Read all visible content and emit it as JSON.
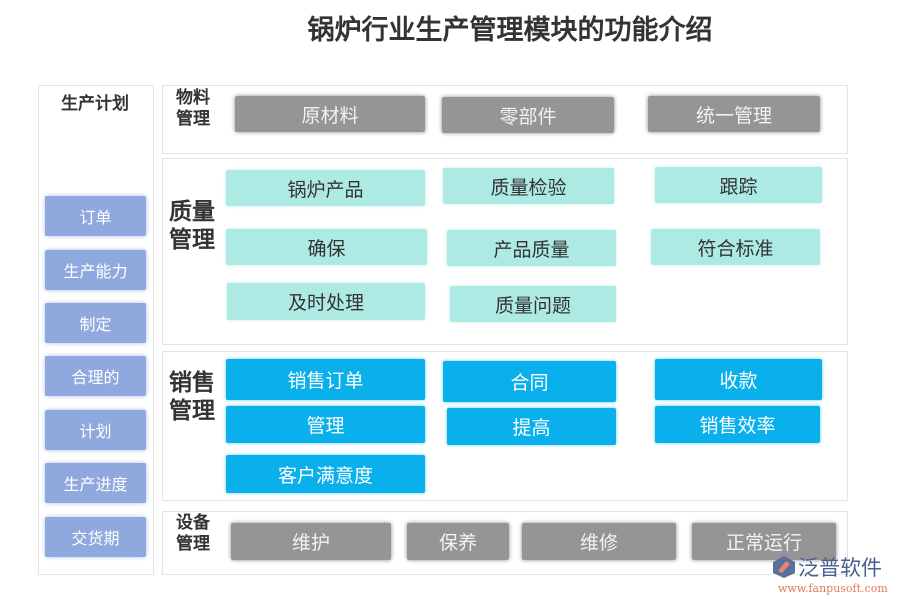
{
  "title": "锅炉行业生产管理模块的功能介绍",
  "sidebar": {
    "title": "生产计划",
    "items": [
      "订单",
      "生产能力",
      "制定",
      "合理的",
      "计划",
      "生产进度",
      "交货期"
    ]
  },
  "sections": [
    {
      "label": "物料管理",
      "items": [
        "原材料",
        "零部件",
        "统一管理"
      ]
    },
    {
      "label": "质量管理",
      "items": [
        "锅炉产品",
        "质量检验",
        "跟踪",
        "确保",
        "产品质量",
        "符合标准",
        "及时处理",
        "质量问题"
      ]
    },
    {
      "label": "销售管理",
      "items": [
        "销售订单",
        "合同",
        "收款",
        "管理",
        "提高",
        "销售效率",
        "客户满意度"
      ]
    },
    {
      "label": "设备管理",
      "items": [
        "维护",
        "保养",
        "维修",
        "正常运行"
      ]
    }
  ],
  "watermark": {
    "name": "泛普软件",
    "url": "www.fanpusoft.com"
  },
  "colors": {
    "gray": "#959595",
    "teal": "#aeeae4",
    "blue": "#09b0ec",
    "side": "#8fa8dd"
  }
}
